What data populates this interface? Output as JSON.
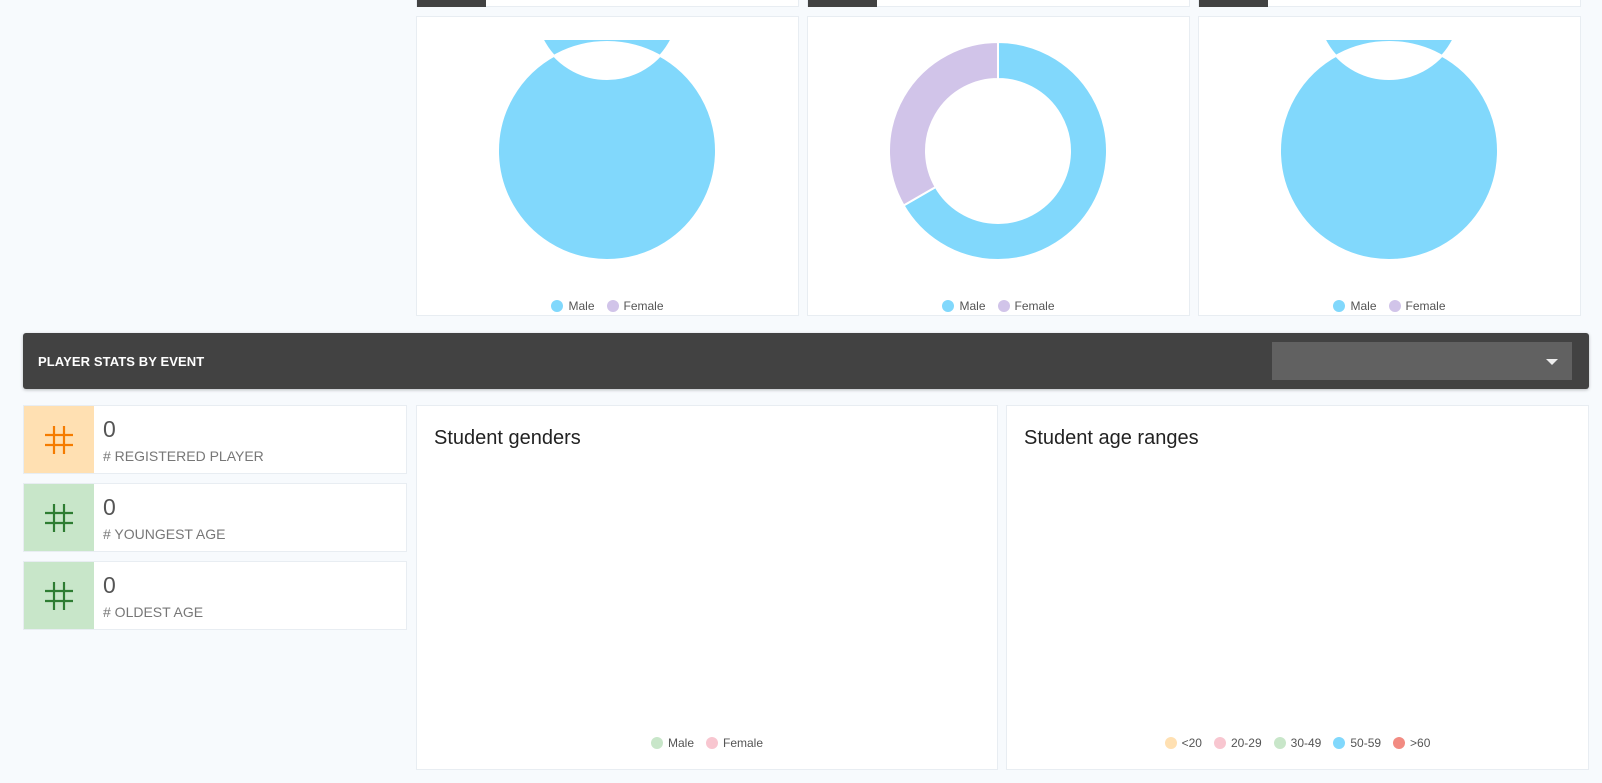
{
  "top_charts": [
    {
      "slices": [
        {
          "label": "Male",
          "value": 1,
          "color": "#81d8fc"
        },
        {
          "label": "Female",
          "value": 0,
          "color": "#d1c4e9"
        }
      ]
    },
    {
      "slices": [
        {
          "label": "Male",
          "value": 2,
          "color": "#81d8fc"
        },
        {
          "label": "Female",
          "value": 1,
          "color": "#d1c4e9"
        }
      ]
    },
    {
      "slices": [
        {
          "label": "Male",
          "value": 1,
          "color": "#81d8fc"
        },
        {
          "label": "Female",
          "value": 0,
          "color": "#d1c4e9"
        }
      ]
    }
  ],
  "section": {
    "title": "PLAYER STATS BY EVENT",
    "event_select_value": ""
  },
  "stats": [
    {
      "value": "0",
      "label": "# REGISTERED PLAYER",
      "icon": "hash-icon",
      "color": "#f57c00",
      "bg": "#ffe0b2"
    },
    {
      "value": "0",
      "label": "# YOUNGEST AGE",
      "icon": "hash-icon",
      "color": "#2e7d32",
      "bg": "#c8e6c9"
    },
    {
      "value": "0",
      "label": "# OLDEST AGE",
      "icon": "hash-icon",
      "color": "#2e7d32",
      "bg": "#c8e6c9"
    }
  ],
  "panels": {
    "genders": {
      "title": "Student genders",
      "legend": [
        {
          "label": "Male",
          "color": "#c8e6c9"
        },
        {
          "label": "Female",
          "color": "#f8c6d0"
        }
      ]
    },
    "ages": {
      "title": "Student age ranges",
      "legend": [
        {
          "label": "<20",
          "color": "#ffe0b2"
        },
        {
          "label": "20-29",
          "color": "#f8c6d0"
        },
        {
          "label": "30-49",
          "color": "#c8e6c9"
        },
        {
          "label": "50-59",
          "color": "#81d8fc"
        },
        {
          "label": ">60",
          "color": "#f28b82"
        }
      ]
    }
  }
}
